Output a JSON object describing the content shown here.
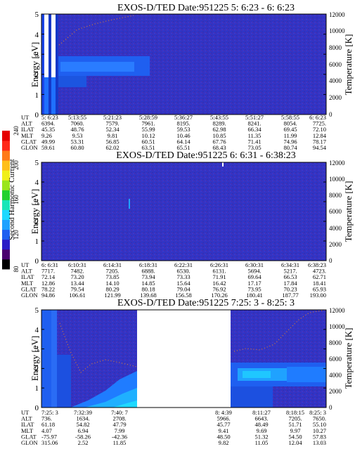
{
  "colorbar": {
    "label": "Second Harmonic Current",
    "ticks": [
      "80",
      "120",
      "160",
      "200",
      "240"
    ],
    "colors": [
      "#000000",
      "#4b006e",
      "#2b1cc7",
      "#1f5ff0",
      "#1fa2ff",
      "#1fd9ff",
      "#19e6b8",
      "#22d12e",
      "#9ae51c",
      "#f0ef1a",
      "#ffbf1a",
      "#ff7a1a",
      "#ff2a1a",
      "#e60000"
    ]
  },
  "chart_data": [
    {
      "type": "heatmap",
      "title": "EXOS-D/TED   Date:951225  5: 6:23 - 6: 6:23",
      "ylabel": "Energy [eV]",
      "ylabel_right": "Temperature [K]",
      "ylim": [
        0,
        5
      ],
      "yticks": [
        "0",
        "1",
        "2",
        "3",
        "4",
        "5"
      ],
      "ylim_right": [
        0,
        12000
      ],
      "yticks_right": [
        "0",
        "2000",
        "4000",
        "6000",
        "8000",
        "10000",
        "12000"
      ],
      "orbit_table": {
        "rows": [
          {
            "label": "UT",
            "values": [
              "5: 6:23",
              "5:13:55",
              "5:21:23",
              "5:28:59",
              "5:36:27",
              "5:43:55",
              "5:51:27",
              "5:58:55",
              "6: 6:23"
            ]
          },
          {
            "label": "ALT",
            "values": [
              "6394.",
              "7060.",
              "7579.",
              "7961.",
              "8195.",
              "8289.",
              "8241.",
              "8054.",
              "7725."
            ]
          },
          {
            "label": "ILAT",
            "values": [
              "45.35",
              "48.76",
              "52.34",
              "55.99",
              "59.53",
              "62.98",
              "66.34",
              "69.45",
              "72.10"
            ]
          },
          {
            "label": "MLT",
            "values": [
              "9.26",
              "9.53",
              "9.81",
              "10.12",
              "10.46",
              "10.85",
              "11.35",
              "11.99",
              "12.84"
            ]
          },
          {
            "label": "GLAT",
            "values": [
              "49.99",
              "53.31",
              "56.85",
              "60.51",
              "64.14",
              "67.76",
              "71.41",
              "74.96",
              "78.17"
            ]
          },
          {
            "label": "GLON",
            "values": [
              "59.61",
              "60.80",
              "62.02",
              "63.51",
              "65.51",
              "68.43",
              "73.05",
              "80.74",
              "94.54"
            ]
          }
        ]
      }
    },
    {
      "type": "heatmap",
      "title": "EXOS-D/TED   Date:951225  6: 6:31 - 6:38:23",
      "ylabel": "Energy [eV]",
      "ylabel_right": "Temperature [K]",
      "ylim": [
        0,
        5
      ],
      "yticks": [
        "0",
        "1",
        "2",
        "3",
        "4",
        "5"
      ],
      "ylim_right": [
        0,
        12000
      ],
      "yticks_right": [
        "0",
        "2000",
        "4000",
        "6000",
        "8000",
        "10000",
        "12000"
      ],
      "orbit_table": {
        "rows": [
          {
            "label": "UT",
            "values": [
              "6: 6:31",
              "6:10:31",
              "6:14:31",
              "6:18:31",
              "6:22:31",
              "6:26:31",
              "6:30:31",
              "6:34:31",
              "6:38:23"
            ]
          },
          {
            "label": "ALT",
            "values": [
              "7717.",
              "7482.",
              "7205.",
              "6888.",
              "6530.",
              "6131.",
              "5694.",
              "5217.",
              "4723."
            ]
          },
          {
            "label": "ILAT",
            "values": [
              "72.14",
              "73.20",
              "73.85",
              "73.94",
              "73.33",
              "71.91",
              "69.64",
              "66.53",
              "62.71"
            ]
          },
          {
            "label": "MLT",
            "values": [
              "12.86",
              "13.44",
              "14.10",
              "14.85",
              "15.64",
              "16.42",
              "17.17",
              "17.84",
              "18.41"
            ]
          },
          {
            "label": "GLAT",
            "values": [
              "78.22",
              "79.54",
              "80.29",
              "80.18",
              "79.04",
              "76.92",
              "73.95",
              "70.23",
              "65.93"
            ]
          },
          {
            "label": "GLON",
            "values": [
              "94.86",
              "106.61",
              "121.99",
              "139.68",
              "156.58",
              "170.26",
              "180.41",
              "187.77",
              "193.00"
            ]
          }
        ]
      }
    },
    {
      "type": "heatmap",
      "title": "EXOS-D/TED   Date:951225  7:25: 3 - 8:25: 3",
      "ylabel": "Energy [eV]",
      "ylabel_right": "Temperature [K]",
      "ylim": [
        0,
        5
      ],
      "yticks": [
        "0",
        "1",
        "2",
        "3",
        "4",
        "5"
      ],
      "ylim_right": [
        0,
        12000
      ],
      "yticks_right": [
        "0",
        "2000",
        "4000",
        "6000",
        "8000",
        "10000",
        "12000"
      ],
      "data_gap": "7:40:7 - 8:4:39",
      "orbit_table": {
        "rows": [
          {
            "label": "UT",
            "values": [
              "7:25: 3",
              "7:32:39",
              "7:40: 7",
              "8: 4:39",
              "8:11:27",
              "8:18:15",
              "8:25: 3"
            ]
          },
          {
            "label": "ALT",
            "values": [
              "736.",
              "1634.",
              "2708.",
              "5966.",
              "6643.",
              "7205.",
              "7650."
            ]
          },
          {
            "label": "ILAT",
            "values": [
              "61.18",
              "54.82",
              "47.79",
              "45.77",
              "48.49",
              "51.71",
              "55.10"
            ]
          },
          {
            "label": "MLT",
            "values": [
              "4.07",
              "6.94",
              "7.99",
              "9.41",
              "9.69",
              "9.97",
              "10.27"
            ]
          },
          {
            "label": "GLAT",
            "values": [
              "-75.97",
              "-58.26",
              "-42.36",
              "48.50",
              "51.32",
              "54.50",
              "57.83"
            ]
          },
          {
            "label": "GLON",
            "values": [
              "315.06",
              "2.52",
              "11.85",
              "9.82",
              "11.05",
              "12.04",
              "13.03"
            ]
          }
        ]
      }
    }
  ]
}
